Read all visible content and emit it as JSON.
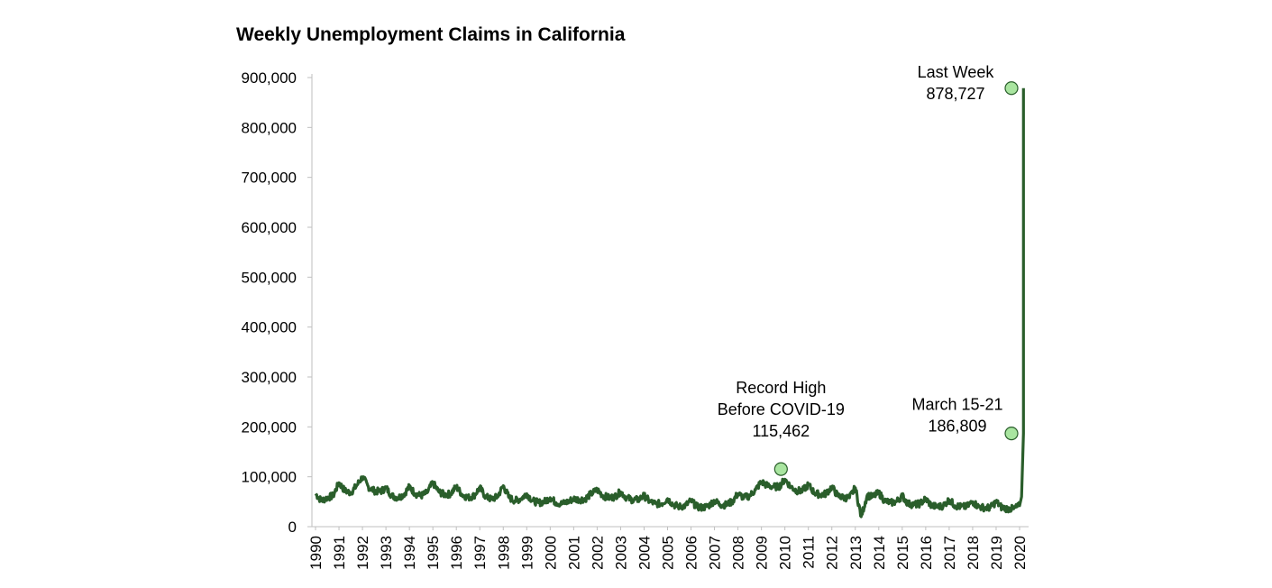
{
  "chart_data": {
    "type": "line",
    "title": "Weekly Unemployment Claims in California",
    "xlabel": "",
    "ylabel": "",
    "ylim": [
      0,
      900000
    ],
    "y_ticks": [
      "0",
      "100,000",
      "200,000",
      "300,000",
      "400,000",
      "500,000",
      "600,000",
      "700,000",
      "800,000",
      "900,000"
    ],
    "x_ticks": [
      "1990",
      "1991",
      "1992",
      "1993",
      "1994",
      "1995",
      "1996",
      "1997",
      "1998",
      "1999",
      "2000",
      "2001",
      "2002",
      "2003",
      "2004",
      "2005",
      "2006",
      "2007",
      "2008",
      "2009",
      "2010",
      "2011",
      "2012",
      "2013",
      "2014",
      "2015",
      "2016",
      "2017",
      "2018",
      "2019",
      "2020"
    ],
    "grid": false,
    "legend": "none",
    "line_color": "#2a5e2b",
    "marker_color": "#a9e5a0",
    "series": [
      {
        "x": [
          "1990-01",
          "1990-04",
          "1990-07",
          "1990-10",
          "1991-01",
          "1991-04",
          "1991-07",
          "1991-10",
          "1992-01",
          "1992-04",
          "1992-07",
          "1992-10",
          "1993-01",
          "1993-04",
          "1993-07",
          "1993-10",
          "1994-01",
          "1994-04",
          "1994-07",
          "1994-10",
          "1995-01",
          "1995-04",
          "1995-07",
          "1995-10",
          "1996-01",
          "1996-04",
          "1996-07",
          "1996-10",
          "1997-01",
          "1997-04",
          "1997-07",
          "1997-10",
          "1998-01",
          "1998-04",
          "1998-07",
          "1998-10",
          "1999-01",
          "1999-04",
          "1999-07",
          "1999-10",
          "2000-01",
          "2000-04",
          "2000-07",
          "2000-10",
          "2001-01",
          "2001-04",
          "2001-07",
          "2001-10",
          "2002-01",
          "2002-04",
          "2002-07",
          "2002-10",
          "2003-01",
          "2003-04",
          "2003-07",
          "2003-10",
          "2004-01",
          "2004-04",
          "2004-07",
          "2004-10",
          "2005-01",
          "2005-04",
          "2005-07",
          "2005-10",
          "2006-01",
          "2006-04",
          "2006-07",
          "2006-10",
          "2007-01",
          "2007-04",
          "2007-07",
          "2007-10",
          "2008-01",
          "2008-04",
          "2008-07",
          "2008-10",
          "2009-01",
          "2009-04",
          "2009-07",
          "2009-10",
          "2010-01",
          "2010-04",
          "2010-07",
          "2010-10",
          "2011-01",
          "2011-04",
          "2011-07",
          "2011-10",
          "2012-01",
          "2012-04",
          "2012-07",
          "2012-10",
          "2013-01",
          "2013-04",
          "2013-07",
          "2013-10",
          "2014-01",
          "2014-04",
          "2014-07",
          "2014-10",
          "2015-01",
          "2015-04",
          "2015-07",
          "2015-10",
          "2016-01",
          "2016-04",
          "2016-07",
          "2016-10",
          "2017-01",
          "2017-04",
          "2017-07",
          "2017-10",
          "2018-01",
          "2018-04",
          "2018-07",
          "2018-10",
          "2019-01",
          "2019-04",
          "2019-07",
          "2019-10",
          "2020-01",
          "2020-02",
          "2020-03",
          "2020-03"
        ],
        "values": [
          66000,
          52000,
          58000,
          62000,
          88000,
          72000,
          68000,
          82000,
          100000,
          80000,
          72000,
          70000,
          78000,
          62000,
          58000,
          64000,
          80000,
          66000,
          62000,
          68000,
          88000,
          70000,
          64000,
          66000,
          80000,
          64000,
          58000,
          62000,
          78000,
          60000,
          55000,
          60000,
          82000,
          58000,
          52000,
          56000,
          66000,
          52000,
          48000,
          50000,
          58000,
          48000,
          46000,
          50000,
          56000,
          54000,
          56000,
          66000,
          74000,
          62000,
          58000,
          60000,
          70000,
          58000,
          54000,
          54000,
          62000,
          50000,
          46000,
          46000,
          56000,
          44000,
          40000,
          42000,
          52000,
          40000,
          38000,
          42000,
          52000,
          44000,
          44000,
          50000,
          66000,
          58000,
          62000,
          74000,
          90000,
          82000,
          80000,
          80000,
          95000,
          80000,
          72000,
          72000,
          84000,
          68000,
          64000,
          66000,
          80000,
          62000,
          58000,
          58000,
          78000,
          20000,
          62000,
          60000,
          68000,
          52000,
          48000,
          50000,
          62000,
          46000,
          44000,
          46000,
          56000,
          42000,
          40000,
          42000,
          54000,
          42000,
          40000,
          40000,
          50000,
          40000,
          38000,
          38000,
          50000,
          38000,
          36000,
          36000,
          42000,
          60000,
          186809,
          878727
        ]
      }
    ],
    "annotations": [
      {
        "lines": [
          "Record High",
          "Before COVID-19",
          "115,462"
        ],
        "x": "2009-11",
        "value": 115462
      },
      {
        "lines": [
          "March  15-21",
          "186,809"
        ],
        "x": "2020-03",
        "value": 186809
      },
      {
        "lines": [
          "Last Week",
          "878,727"
        ],
        "x": "2020-03",
        "value": 878727
      }
    ]
  }
}
